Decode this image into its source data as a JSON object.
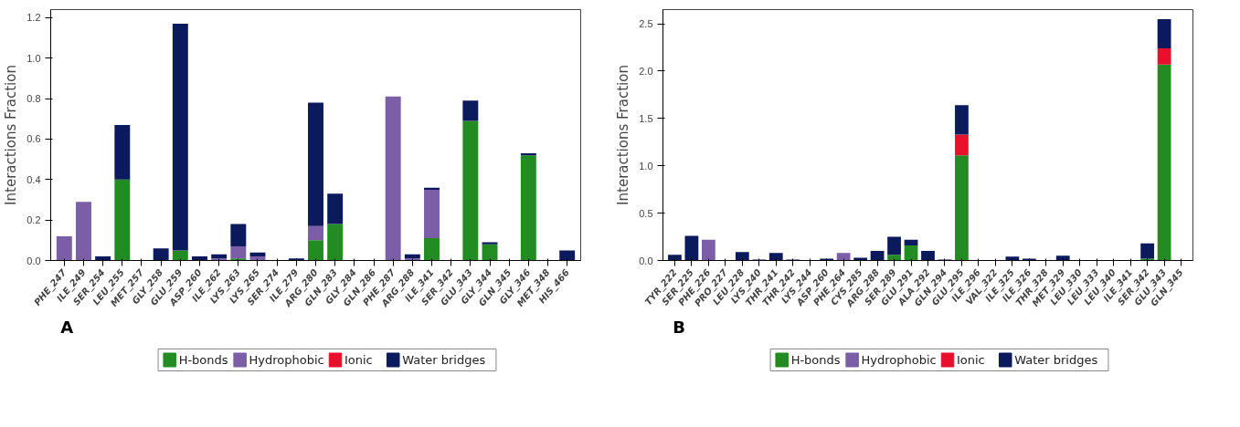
{
  "chart_data": [
    {
      "type": "bar",
      "stacked": true,
      "ylabel": "Interactions Fraction",
      "annotations": [
        "A"
      ],
      "legend": "bottom",
      "grid": false,
      "categories": [
        "PHE_247",
        "ILE_249",
        "SER_254",
        "LEU_255",
        "MET_257",
        "GLY_258",
        "GLU_259",
        "ASP_260",
        "ILE_262",
        "LYS_263",
        "LYS_265",
        "SER_274",
        "ILE_279",
        "ARG_280",
        "GLN_283",
        "GLY_284",
        "GLN_286",
        "PHE_287",
        "ARG_288",
        "ILE_341",
        "SER_342",
        "GLU_343",
        "GLY_344",
        "GLN_345",
        "GLY_346",
        "MET_348",
        "HIS_466"
      ],
      "ylim": [
        0,
        1.24
      ],
      "yticks": [
        {
          "value": 0,
          "label": "0.0"
        },
        0.2,
        0.4,
        0.6,
        0.8,
        {
          "value": 1,
          "label": "1.0"
        },
        1.2
      ],
      "series": [
        {
          "name": "H-bonds",
          "color": "#228b22",
          "values": [
            0,
            0,
            0,
            0.4,
            0,
            0,
            0.05,
            0,
            0,
            0.01,
            0,
            0,
            0,
            0.1,
            0.18,
            0,
            0,
            0,
            0,
            0.11,
            0,
            0.69,
            0.08,
            0,
            0.52,
            0,
            0
          ]
        },
        {
          "name": "Hydrophobic",
          "color": "#7b5ea7",
          "values": [
            0.12,
            0.29,
            0,
            0,
            0,
            0,
            0,
            0,
            0.01,
            0.06,
            0.02,
            0,
            0,
            0.07,
            0,
            0,
            0,
            0.81,
            0.01,
            0.24,
            0,
            0,
            0,
            0,
            0,
            0,
            0
          ]
        },
        {
          "name": "Ionic",
          "color": "#e8102c",
          "values": [
            0,
            0,
            0,
            0,
            0,
            0,
            0,
            0,
            0,
            0,
            0,
            0,
            0,
            0,
            0,
            0,
            0,
            0,
            0,
            0,
            0,
            0,
            0,
            0,
            0,
            0,
            0
          ]
        },
        {
          "name": "Water bridges",
          "color": "#0a1a5c",
          "values": [
            0,
            0,
            0.02,
            0.27,
            0,
            0.06,
            1.12,
            0.02,
            0.02,
            0.11,
            0.02,
            0,
            0.01,
            0.61,
            0.15,
            0,
            0,
            0,
            0.02,
            0.01,
            0,
            0.1,
            0.01,
            0,
            0.01,
            0,
            0.05
          ]
        }
      ]
    },
    {
      "type": "bar",
      "stacked": true,
      "ylabel": "Interactions Fraction",
      "annotations": [
        "B"
      ],
      "legend": "bottom",
      "grid": false,
      "categories": [
        "TYR_222",
        "SER_225",
        "PHE_226",
        "PRO_227",
        "LEU_228",
        "LYS_240",
        "THR_241",
        "THR_242",
        "LYS_244",
        "ASP_260",
        "PHE_264",
        "CYS_285",
        "ARG_288",
        "SER_289",
        "GLU_291",
        "ALA_292",
        "GLN_294",
        "GLU_295",
        "ILE_296",
        "VAL_322",
        "ILE_325",
        "ILE_326",
        "THR_328",
        "MET_329",
        "LEU_330",
        "LEU_333",
        "LEU_340",
        "ILE_341",
        "SER_342",
        "GLU_343",
        "GLN_345"
      ],
      "ylim": [
        0,
        2.65
      ],
      "yticks": [
        {
          "value": 0,
          "label": "0.0"
        },
        0.5,
        {
          "value": 1,
          "label": "1.0"
        },
        1.5,
        {
          "value": 2,
          "label": "2.0"
        },
        2.5
      ],
      "series": [
        {
          "name": "H-bonds",
          "color": "#228b22",
          "values": [
            0,
            0,
            0,
            0,
            0,
            0,
            0,
            0,
            0,
            0,
            0,
            0,
            0,
            0.06,
            0.16,
            0,
            0,
            1.11,
            0,
            0,
            0,
            0,
            0,
            0,
            0,
            0,
            0,
            0,
            0.02,
            2.07,
            0
          ]
        },
        {
          "name": "Hydrophobic",
          "color": "#7b5ea7",
          "values": [
            0,
            0,
            0.22,
            0,
            0,
            0,
            0,
            0,
            0,
            0,
            0.08,
            0,
            0,
            0,
            0,
            0,
            0,
            0,
            0,
            0,
            0,
            0,
            0,
            0,
            0,
            0,
            0,
            0,
            0,
            0,
            0
          ]
        },
        {
          "name": "Ionic",
          "color": "#e8102c",
          "values": [
            0,
            0,
            0,
            0,
            0,
            0,
            0,
            0,
            0,
            0,
            0,
            0,
            0,
            0,
            0,
            0,
            0,
            0.22,
            0,
            0,
            0,
            0,
            0,
            0,
            0,
            0,
            0,
            0,
            0,
            0.17,
            0
          ]
        },
        {
          "name": "Water bridges",
          "color": "#0a1a5c",
          "values": [
            0.06,
            0.26,
            0,
            0,
            0.09,
            0.01,
            0.08,
            0.01,
            0,
            0.02,
            0,
            0.03,
            0.1,
            0.19,
            0.06,
            0.1,
            0.01,
            0.31,
            0,
            0,
            0.04,
            0.02,
            0,
            0.05,
            0,
            0,
            0,
            0,
            0.16,
            0.31,
            0
          ]
        }
      ]
    }
  ]
}
